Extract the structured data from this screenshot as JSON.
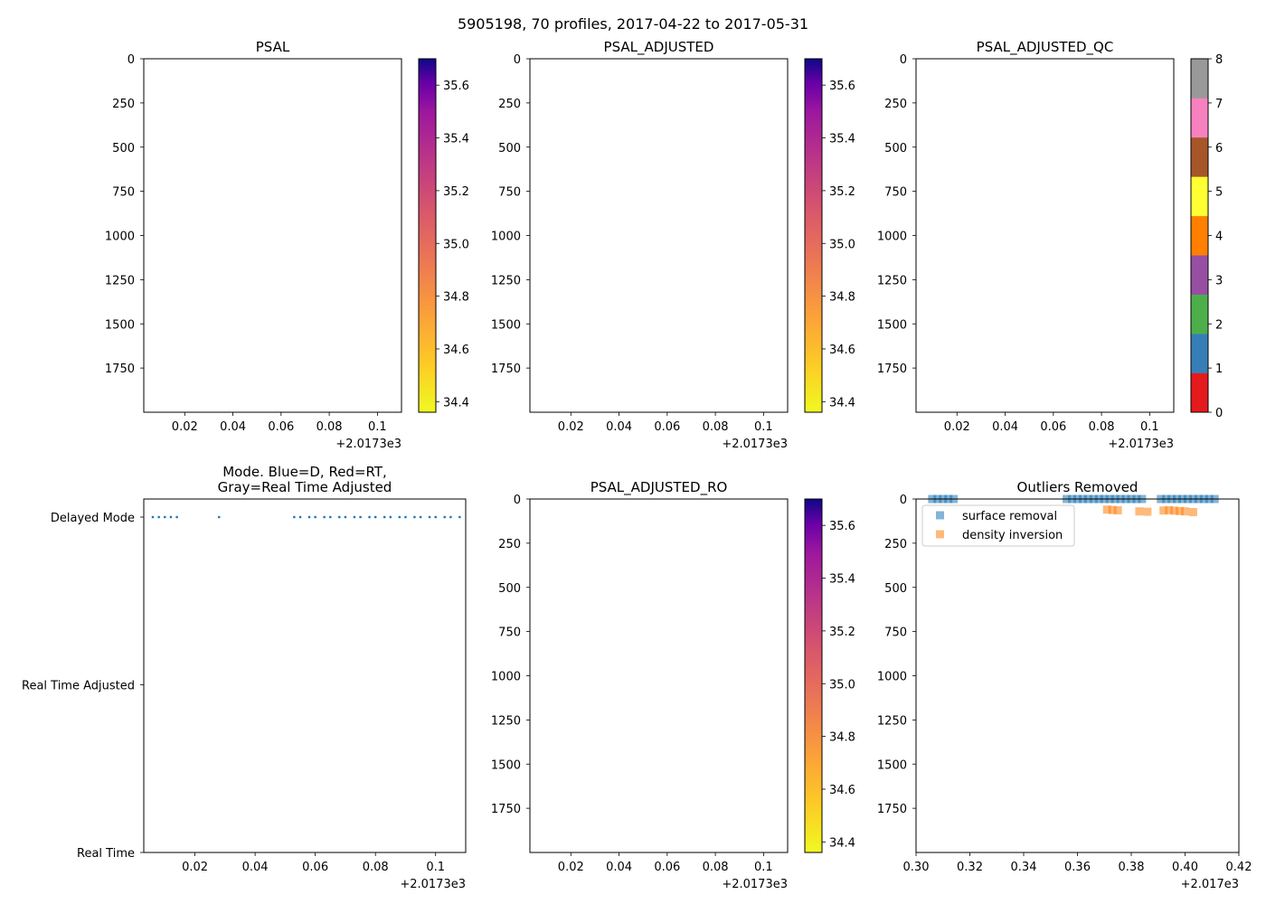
{
  "figure": {
    "suptitle": "5905198, 70 profiles, 2017-04-22 to 2017-05-31"
  },
  "chart_data": [
    {
      "id": "psal",
      "type": "heatmap",
      "title": "PSAL",
      "xlim": [
        0.003,
        0.11
      ],
      "x_ticks": [
        0.02,
        0.04,
        0.06,
        0.08,
        0.1
      ],
      "x_offset_label": "+2.0173e3",
      "ylim": [
        2000,
        0
      ],
      "y_ticks": [
        0,
        250,
        500,
        750,
        1000,
        1250,
        1500,
        1750
      ],
      "colorbar": {
        "cmap": "plasma_r",
        "range": [
          34.36,
          35.7
        ],
        "ticks": [
          "34.4",
          "34.6",
          "34.8",
          "35.0",
          "35.2",
          "35.4",
          "35.6"
        ]
      }
    },
    {
      "id": "psal_adjusted",
      "type": "heatmap",
      "title": "PSAL_ADJUSTED",
      "xlim": [
        0.003,
        0.11
      ],
      "x_ticks": [
        0.02,
        0.04,
        0.06,
        0.08,
        0.1
      ],
      "x_offset_label": "+2.0173e3",
      "ylim": [
        2000,
        0
      ],
      "y_ticks": [
        0,
        250,
        500,
        750,
        1000,
        1250,
        1500,
        1750
      ],
      "colorbar": {
        "cmap": "plasma_r",
        "range": [
          34.36,
          35.7
        ],
        "ticks": [
          "34.4",
          "34.6",
          "34.8",
          "35.0",
          "35.2",
          "35.4",
          "35.6"
        ]
      }
    },
    {
      "id": "psal_adjusted_qc",
      "type": "heatmap",
      "title": "PSAL_ADJUSTED_QC",
      "xlim": [
        0.003,
        0.11
      ],
      "x_ticks": [
        0.02,
        0.04,
        0.06,
        0.08,
        0.1
      ],
      "x_offset_label": "+2.0173e3",
      "ylim": [
        2000,
        0
      ],
      "y_ticks": [
        0,
        250,
        500,
        750,
        1000,
        1250,
        1500,
        1750
      ],
      "colorbar": {
        "discrete": true,
        "range": [
          0,
          8
        ],
        "ticks": [
          "0",
          "1",
          "2",
          "3",
          "4",
          "5",
          "6",
          "7",
          "8"
        ],
        "colors": [
          "#e41a1c",
          "#377eb8",
          "#4daf4a",
          "#984ea3",
          "#ff7f00",
          "#ffff33",
          "#a65628",
          "#f781bf",
          "#999999"
        ]
      }
    },
    {
      "id": "mode",
      "type": "scatter",
      "title_lines": [
        "Mode. Blue=D, Red=RT,",
        "Gray=Real Time Adjusted"
      ],
      "xlim": [
        0.003,
        0.11
      ],
      "x_ticks": [
        0.02,
        0.04,
        0.06,
        0.08,
        0.1
      ],
      "x_offset_label": "+2.0173e3",
      "y_categories": [
        "Delayed Mode",
        "Real Time Adjusted",
        "Real Time"
      ],
      "series": [
        {
          "name": "Delayed Mode",
          "color": "#1f77b4",
          "x": [
            0.006,
            0.008,
            0.01,
            0.012,
            0.014,
            0.028,
            0.053,
            0.055,
            0.058,
            0.06,
            0.063,
            0.065,
            0.068,
            0.07,
            0.073,
            0.075,
            0.078,
            0.08,
            0.083,
            0.085,
            0.088,
            0.09,
            0.093,
            0.095,
            0.098,
            0.1,
            0.103,
            0.105,
            0.108
          ],
          "y": "Delayed Mode"
        }
      ]
    },
    {
      "id": "psal_adjusted_ro",
      "type": "heatmap",
      "title": "PSAL_ADJUSTED_RO",
      "xlim": [
        0.003,
        0.11
      ],
      "x_ticks": [
        0.02,
        0.04,
        0.06,
        0.08,
        0.1
      ],
      "x_offset_label": "+2.0173e3",
      "ylim": [
        2000,
        0
      ],
      "y_ticks": [
        0,
        250,
        500,
        750,
        1000,
        1250,
        1500,
        1750
      ],
      "colorbar": {
        "cmap": "plasma_r",
        "range": [
          34.36,
          35.7
        ],
        "ticks": [
          "34.4",
          "34.6",
          "34.8",
          "35.0",
          "35.2",
          "35.4",
          "35.6"
        ]
      }
    },
    {
      "id": "outliers",
      "type": "scatter",
      "title": "Outliers Removed",
      "xlim": [
        0.3,
        0.42
      ],
      "x_ticks": [
        "0.30",
        "0.32",
        "0.34",
        "0.36",
        "0.38",
        "0.40",
        "0.42"
      ],
      "x_offset_label": "+2.017e3",
      "ylim": [
        2000,
        0
      ],
      "y_ticks": [
        0,
        250,
        500,
        750,
        1000,
        1250,
        1500,
        1750
      ],
      "legend_location": "upper-left",
      "series": [
        {
          "name": "surface removal",
          "color": "#1f77b4",
          "x": [
            0.306,
            0.308,
            0.31,
            0.312,
            0.314,
            0.356,
            0.358,
            0.36,
            0.362,
            0.364,
            0.366,
            0.368,
            0.37,
            0.372,
            0.374,
            0.376,
            0.378,
            0.38,
            0.382,
            0.384,
            0.391,
            0.393,
            0.395,
            0.397,
            0.399,
            0.401,
            0.403,
            0.405,
            0.407,
            0.409,
            0.411
          ],
          "y": [
            0,
            0,
            0,
            0,
            0,
            0,
            0,
            0,
            0,
            0,
            0,
            0,
            0,
            0,
            0,
            0,
            0,
            0,
            0,
            0,
            0,
            0,
            0,
            0,
            0,
            0,
            0,
            0,
            0,
            0,
            0
          ]
        },
        {
          "name": "density inversion",
          "color": "#ff7f0e",
          "x": [
            0.371,
            0.373,
            0.375,
            0.383,
            0.386,
            0.392,
            0.394,
            0.396,
            0.398,
            0.4,
            0.403
          ],
          "y": [
            60,
            62,
            64,
            70,
            72,
            65,
            63,
            66,
            68,
            70,
            74
          ]
        }
      ]
    }
  ]
}
